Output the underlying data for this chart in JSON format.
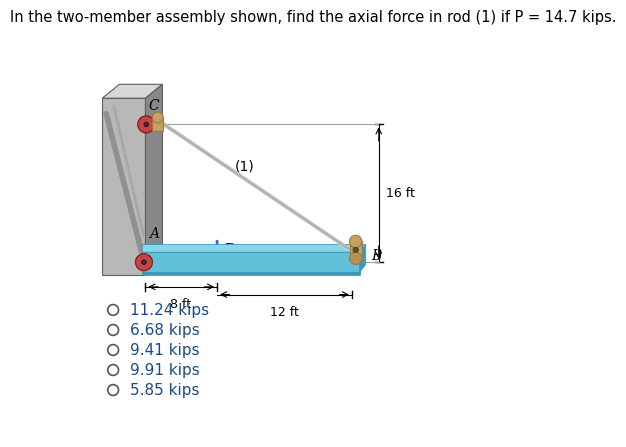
{
  "title": "In the two-member assembly shown, find the axial force in rod (1) if P = 14.7 kips.",
  "title_fontsize": 10.5,
  "choices": [
    "11.24 kips",
    "6.68 kips",
    "9.41 kips",
    "9.91 kips",
    "5.85 kips"
  ],
  "choice_fontsize": 11,
  "label_A": "A",
  "label_B": "B",
  "label_C": "C",
  "label_P": "P",
  "label_rod1": "(1)",
  "dim_8ft": "8 ft",
  "dim_12ft": "12 ft",
  "dim_16ft": "16 ft",
  "wall_front_color": "#b8b8b8",
  "wall_side_color": "#888888",
  "wall_top_color": "#d8d8d8",
  "beam_color": "#62c0d8",
  "beam_top_color": "#88d8e8",
  "beam_side_color": "#3a9ab8",
  "pin_tan": "#c8a060",
  "pin_tan_dark": "#a07840",
  "pin_red": "#c84444",
  "pin_red_dark": "#882222",
  "rod_light": "#c8c8c8",
  "rod_dark": "#e8e8e8",
  "arrow_blue": "#3366cc",
  "text_color": "#000000",
  "bg_color": "#ffffff",
  "choice_text_color": "#1a4a8a"
}
